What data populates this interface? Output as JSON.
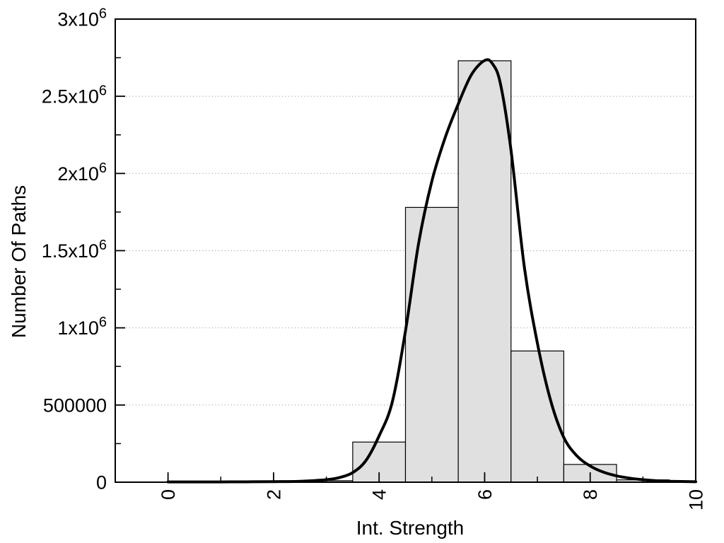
{
  "chart_data": {
    "type": "bar",
    "subtype": "histogram-with-fit-curve",
    "title": "",
    "xlabel": "Int. Strength",
    "ylabel": "Number Of Paths",
    "xlim": [
      -1,
      10
    ],
    "ylim": [
      0,
      3000000
    ],
    "x_major_ticks": [
      0,
      2,
      4,
      6,
      8,
      10
    ],
    "x_major_tick_labels": [
      "0",
      "2",
      "4",
      "6",
      "8",
      "10"
    ],
    "x_minor_ticks": [
      1,
      3,
      5,
      7,
      9
    ],
    "y_major_ticks": [
      0,
      500000,
      1000000,
      1500000,
      2000000,
      2500000,
      3000000
    ],
    "y_major_tick_labels": [
      "0",
      "500000",
      "1x10^6",
      "1.5x10^6",
      "2x10^6",
      "2.5x10^6",
      "3x10^6"
    ],
    "y_minor_ticks": [
      250000,
      750000,
      1250000,
      1750000,
      2250000,
      2750000
    ],
    "tick_label_rotation_x": -90,
    "grid": {
      "y_major": true,
      "x": false,
      "style": "dotted",
      "color": "#999999"
    },
    "legend": null,
    "bars": {
      "bin_width": 1,
      "bin_centers": [
        3,
        4,
        5,
        6,
        7,
        8,
        9
      ],
      "counts": [
        10000,
        260000,
        1780000,
        2730000,
        850000,
        115000,
        15000
      ],
      "fill": "#e0e0e0",
      "stroke": "#000000"
    },
    "fit_curve": {
      "color": "#000000",
      "stroke_width": 4,
      "x": [
        0,
        0.5,
        1,
        1.5,
        2,
        2.5,
        3,
        3.25,
        3.5,
        3.75,
        4,
        4.25,
        4.5,
        4.75,
        5,
        5.25,
        5.5,
        5.75,
        6,
        6.15,
        6.3,
        6.5,
        6.75,
        7,
        7.25,
        7.5,
        7.75,
        8,
        8.25,
        8.5,
        8.75,
        9,
        9.25,
        9.5,
        10
      ],
      "y": [
        1500,
        1500,
        2000,
        2500,
        3500,
        6000,
        16000,
        30000,
        62000,
        140000,
        300000,
        520000,
        980000,
        1550000,
        1950000,
        2230000,
        2450000,
        2640000,
        2732000,
        2710000,
        2580000,
        2150000,
        1400000,
        900000,
        530000,
        290000,
        170000,
        105000,
        65000,
        41000,
        26000,
        16000,
        10000,
        6000,
        3000
      ]
    },
    "colors": {
      "background": "#ffffff",
      "axis": "#000000",
      "text": "#000000"
    }
  }
}
